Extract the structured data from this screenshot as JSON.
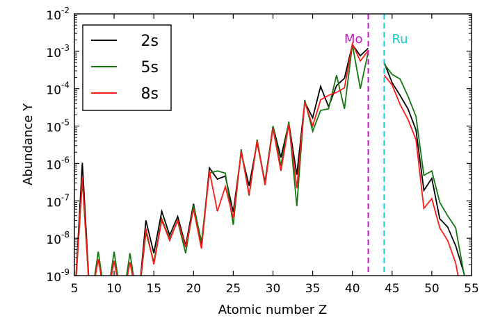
{
  "chart_data": {
    "type": "line",
    "title": "",
    "xlabel": "Atomic number Z",
    "ylabel": "Abundance Y",
    "xlim": [
      5,
      55
    ],
    "ylim_log10": [
      -9,
      -2
    ],
    "yscale": "log",
    "x_ticks": [
      5,
      10,
      15,
      20,
      25,
      30,
      35,
      40,
      45,
      50,
      55
    ],
    "x_tick_labels": [
      "5",
      "10",
      "15",
      "20",
      "25",
      "30",
      "35",
      "40",
      "45",
      "50",
      "55"
    ],
    "y_tick_exponents": [
      -9,
      -8,
      -7,
      -6,
      -5,
      -4,
      -3,
      -2
    ],
    "y_tick_labels": [
      {
        "base": "10",
        "exp": "-9"
      },
      {
        "base": "10",
        "exp": "-8"
      },
      {
        "base": "10",
        "exp": "-7"
      },
      {
        "base": "10",
        "exp": "-6"
      },
      {
        "base": "10",
        "exp": "-5"
      },
      {
        "base": "10",
        "exp": "-4"
      },
      {
        "base": "10",
        "exp": "-3"
      },
      {
        "base": "10",
        "exp": "-2"
      }
    ],
    "legend": {
      "position": "top-left"
    },
    "series": [
      {
        "name": "2s",
        "color": "#000000",
        "points": [
          [
            5,
            -9.8
          ],
          [
            6,
            -5.98
          ],
          [
            7,
            -9.8
          ],
          [
            8,
            -9.8
          ],
          [
            9,
            -9.8
          ],
          [
            10,
            -9.8
          ],
          [
            11,
            -9.8
          ],
          [
            12,
            -9.8
          ],
          [
            13,
            -9.8
          ],
          [
            14,
            -7.52
          ],
          [
            15,
            -8.4
          ],
          [
            16,
            -7.28
          ],
          [
            17,
            -7.92
          ],
          [
            18,
            -7.42
          ],
          [
            19,
            -8.2
          ],
          [
            20,
            -7.08
          ],
          [
            21,
            -8.2
          ],
          [
            22,
            -6.12
          ],
          [
            23,
            -6.42
          ],
          [
            24,
            -6.34
          ],
          [
            25,
            -7.3
          ],
          [
            26,
            -5.72
          ],
          [
            27,
            -6.6
          ],
          [
            28,
            -5.44
          ],
          [
            29,
            -6.5
          ],
          [
            30,
            -5.0
          ],
          [
            31,
            -5.84
          ],
          [
            32,
            -4.92
          ],
          [
            33,
            -6.3
          ],
          [
            34,
            -4.36
          ],
          [
            35,
            -4.78
          ],
          [
            36,
            -3.94
          ],
          [
            37,
            -4.48
          ],
          [
            38,
            -3.92
          ],
          [
            39,
            -3.72
          ],
          [
            40,
            -2.82
          ],
          [
            41,
            -3.12
          ],
          [
            42,
            -2.92
          ]
        ],
        "points_right": [
          [
            44,
            -3.3
          ],
          [
            45,
            -3.84
          ],
          [
            46,
            -4.18
          ],
          [
            47,
            -4.54
          ],
          [
            48,
            -5.1
          ],
          [
            49,
            -6.72
          ],
          [
            50,
            -6.4
          ],
          [
            51,
            -7.48
          ],
          [
            52,
            -7.7
          ],
          [
            53,
            -8.2
          ],
          [
            54,
            -8.9
          ],
          [
            55,
            -9.8
          ]
        ]
      },
      {
        "name": "5s",
        "color": "#117711",
        "points": [
          [
            5,
            -9.8
          ],
          [
            6,
            -6.44
          ],
          [
            7,
            -9.8
          ],
          [
            8,
            -8.36
          ],
          [
            9,
            -9.8
          ],
          [
            10,
            -8.36
          ],
          [
            11,
            -9.8
          ],
          [
            12,
            -8.4
          ],
          [
            13,
            -9.8
          ],
          [
            14,
            -7.84
          ],
          [
            15,
            -8.64
          ],
          [
            16,
            -7.48
          ],
          [
            17,
            -8.02
          ],
          [
            18,
            -7.54
          ],
          [
            19,
            -8.4
          ],
          [
            20,
            -7.12
          ],
          [
            21,
            -8.1
          ],
          [
            22,
            -6.26
          ],
          [
            23,
            -6.2
          ],
          [
            24,
            -6.26
          ],
          [
            25,
            -7.64
          ],
          [
            26,
            -5.62
          ],
          [
            27,
            -6.86
          ],
          [
            28,
            -5.36
          ],
          [
            29,
            -6.54
          ],
          [
            30,
            -5.0
          ],
          [
            31,
            -6.06
          ],
          [
            32,
            -4.88
          ],
          [
            33,
            -7.14
          ],
          [
            34,
            -4.3
          ],
          [
            35,
            -5.14
          ],
          [
            36,
            -4.58
          ],
          [
            37,
            -4.54
          ],
          [
            38,
            -3.64
          ],
          [
            39,
            -4.54
          ],
          [
            40,
            -2.82
          ],
          [
            41,
            -4.0
          ],
          [
            42,
            -3.02
          ]
        ],
        "points_right": [
          [
            44,
            -3.34
          ],
          [
            45,
            -3.62
          ],
          [
            46,
            -3.74
          ],
          [
            47,
            -4.2
          ],
          [
            48,
            -4.74
          ],
          [
            49,
            -6.32
          ],
          [
            50,
            -6.2
          ],
          [
            51,
            -7.04
          ],
          [
            52,
            -7.4
          ],
          [
            53,
            -7.72
          ],
          [
            54,
            -8.9
          ],
          [
            55,
            -9.8
          ]
        ]
      },
      {
        "name": "8s",
        "color": "#ff1a1a",
        "points": [
          [
            5,
            -9.8
          ],
          [
            6,
            -6.36
          ],
          [
            7,
            -9.8
          ],
          [
            8,
            -8.56
          ],
          [
            9,
            -9.8
          ],
          [
            10,
            -8.6
          ],
          [
            11,
            -9.8
          ],
          [
            12,
            -8.64
          ],
          [
            13,
            -9.8
          ],
          [
            14,
            -7.74
          ],
          [
            15,
            -8.7
          ],
          [
            16,
            -7.52
          ],
          [
            17,
            -8.06
          ],
          [
            18,
            -7.52
          ],
          [
            19,
            -8.24
          ],
          [
            20,
            -7.22
          ],
          [
            21,
            -8.28
          ],
          [
            22,
            -6.2
          ],
          [
            23,
            -7.28
          ],
          [
            24,
            -6.62
          ],
          [
            25,
            -7.46
          ],
          [
            26,
            -5.68
          ],
          [
            27,
            -6.84
          ],
          [
            28,
            -5.4
          ],
          [
            29,
            -6.58
          ],
          [
            30,
            -5.06
          ],
          [
            31,
            -6.2
          ],
          [
            32,
            -4.96
          ],
          [
            33,
            -6.66
          ],
          [
            34,
            -4.36
          ],
          [
            35,
            -5.0
          ],
          [
            36,
            -4.3
          ],
          [
            37,
            -4.18
          ],
          [
            38,
            -4.1
          ],
          [
            39,
            -3.98
          ],
          [
            40,
            -2.8
          ],
          [
            41,
            -3.26
          ],
          [
            42,
            -2.98
          ]
        ],
        "points_right": [
          [
            44,
            -3.64
          ],
          [
            45,
            -3.9
          ],
          [
            46,
            -4.42
          ],
          [
            47,
            -4.82
          ],
          [
            48,
            -5.36
          ],
          [
            49,
            -7.2
          ],
          [
            50,
            -6.94
          ],
          [
            51,
            -7.72
          ],
          [
            52,
            -8.06
          ],
          [
            53,
            -8.66
          ],
          [
            54,
            -9.8
          ]
        ]
      }
    ],
    "vlines": [
      {
        "x": 42,
        "label": "Mo",
        "color": "#cc11cc"
      },
      {
        "x": 44,
        "label": "Ru",
        "color": "#11cccc"
      }
    ]
  }
}
